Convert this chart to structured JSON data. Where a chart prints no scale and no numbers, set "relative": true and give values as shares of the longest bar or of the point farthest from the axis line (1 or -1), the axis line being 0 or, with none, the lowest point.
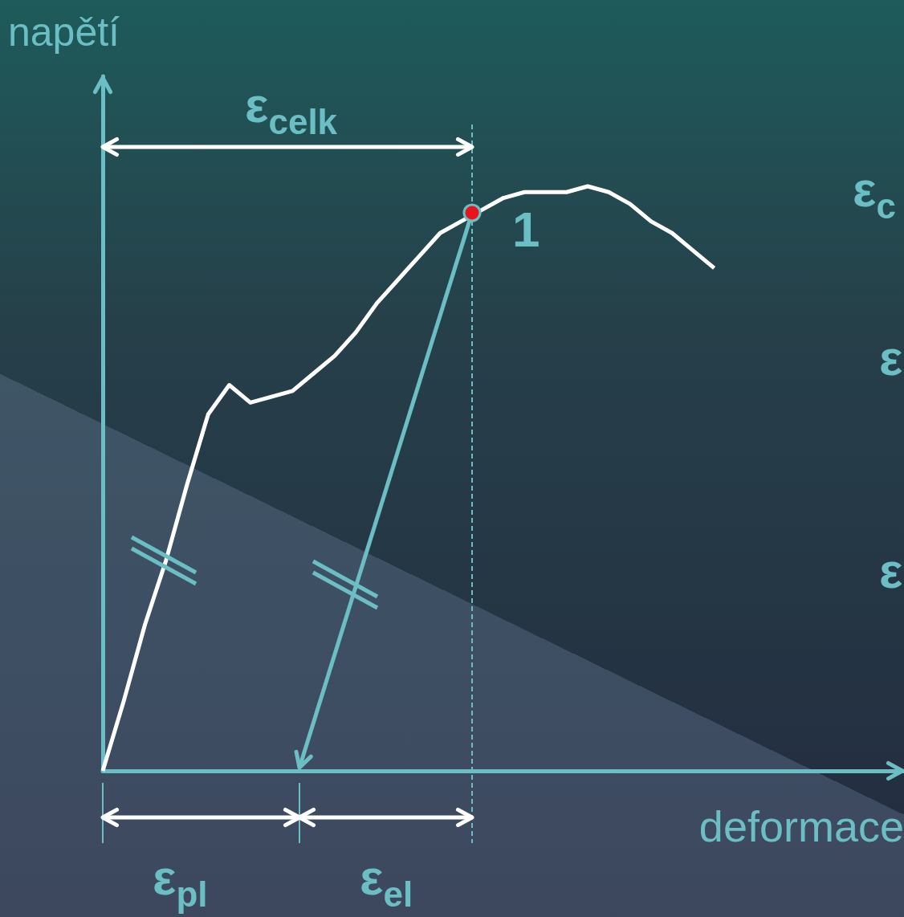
{
  "chart_data": {
    "type": "line",
    "relative": true,
    "xlabel": "deformace",
    "ylabel": "napětí",
    "marker": "none",
    "categories": [
      null,
      null,
      null,
      null,
      null,
      null,
      null,
      null,
      null,
      null,
      null,
      null,
      null,
      null,
      null,
      null,
      null,
      null,
      null,
      null,
      null,
      null,
      null,
      null,
      null,
      null,
      null,
      null,
      null,
      null,
      null,
      null,
      null,
      null,
      null,
      null,
      null,
      null,
      null
    ],
    "series": [
      {
        "color": "#ffffff",
        "values": [
          0,
          0.12,
          0.25,
          0.36,
          0.49,
          0.61,
          0.66,
          0.63,
          0.64,
          0.65,
          0.68,
          0.71,
          0.75,
          0.8,
          0.84,
          0.88,
          0.92,
          0.94,
          0.96,
          0.98,
          0.99,
          0.99,
          0.99,
          1,
          0.99,
          0.97,
          0.94,
          0.92,
          0.89,
          0.86,
          null,
          null,
          null,
          null,
          null,
          null,
          null,
          null,
          null
        ]
      }
    ],
    "annotations": [
      "ε$_{celk}$",
      "1",
      "ε$_{pl}$",
      "ε$_{el}$",
      "ε$_{c}$",
      "ε",
      "ε"
    ]
  }
}
